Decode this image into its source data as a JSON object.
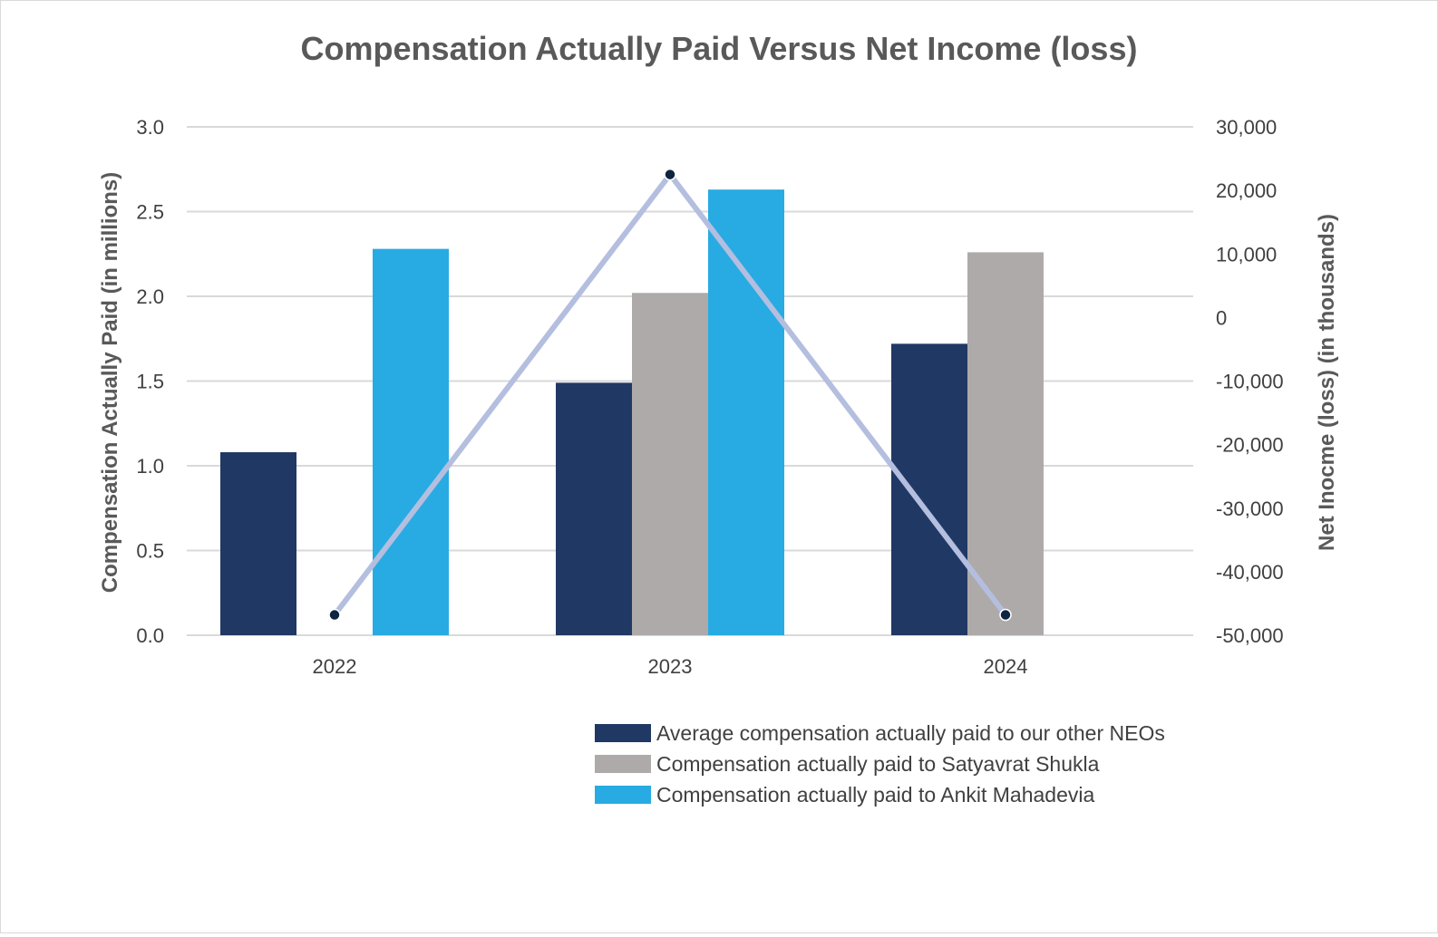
{
  "chart_data": {
    "type": "bar",
    "title": "Compensation Actually Paid Versus Net Income (loss)",
    "ylabel": "Compensation Actually Paid (in millions)",
    "y2label": "Net Inocme (loss) (in thousands)",
    "categories": [
      "2022",
      "2023",
      "2024"
    ],
    "ylim": [
      0,
      3
    ],
    "yticks": [
      "0.0",
      "0.5",
      "1.0",
      "1.5",
      "2.0",
      "2.5",
      "3.0"
    ],
    "y2lim": [
      -50000,
      30000
    ],
    "y2ticks": [
      "-50,000",
      "-40,000",
      "-30,000",
      "-20,000",
      "-10,000",
      "0",
      "10,000",
      "20,000",
      "30,000"
    ],
    "grid": true,
    "legend_position": "bottom-right",
    "series": [
      {
        "name": "Average compensation actually paid to our other NEOs",
        "color": "#203864",
        "values": [
          1.08,
          1.49,
          1.72
        ]
      },
      {
        "name": "Compensation actually paid to Satyavrat Shukla",
        "color": "#aeaaaa",
        "values": [
          null,
          2.02,
          2.26
        ]
      },
      {
        "name": "Compensation actually paid to Ankit Mahadevia",
        "color": "#27abe2",
        "values": [
          2.28,
          2.63,
          null
        ]
      }
    ],
    "line_series": {
      "axis": "y2",
      "color": "#b4bedf",
      "marker_color": "#0e2440",
      "values": [
        -46800,
        22500,
        -46800
      ]
    }
  }
}
